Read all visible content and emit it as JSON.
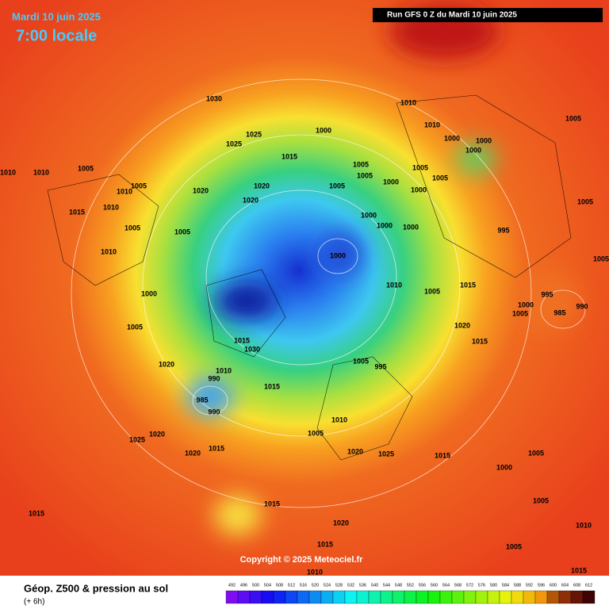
{
  "header": {
    "date": "Mardi 10 juin 2025",
    "time": "7:00 locale",
    "run": "Run GFS 0 Z du Mardi 10 juin 2025"
  },
  "copyright": "Copyright © 2025 Meteociel.fr",
  "footer": {
    "title": "Géop. Z500 & pression au sol",
    "step": "(+ 6h)"
  },
  "isobars": [
    1030,
    1010,
    1010,
    1000,
    1000,
    1000,
    1000,
    1005,
    1025,
    1025,
    1015,
    1005,
    1005,
    1005,
    1005,
    1010,
    1010,
    1005,
    1005,
    1010,
    1020,
    1020,
    1005,
    1000,
    1000,
    1020,
    1015,
    1010,
    1005,
    1000,
    1000,
    1000,
    995,
    1005,
    1005,
    1010,
    1000,
    1005,
    1010,
    1005,
    1015,
    995,
    1000,
    1000,
    1005,
    985,
    990,
    1005,
    1020,
    1015,
    1030,
    1015,
    1020,
    1005,
    995,
    1010,
    990,
    1015,
    985,
    990,
    1010,
    1005,
    1020,
    1025,
    1020,
    1015,
    1020,
    1025,
    1015,
    1005,
    1000,
    1015,
    1015,
    1005,
    1020,
    1010,
    1005,
    1015,
    1010,
    1015
  ],
  "scale": [
    492,
    496,
    500,
    504,
    508,
    512,
    516,
    520,
    524,
    528,
    532,
    536,
    540,
    544,
    548,
    552,
    556,
    560,
    564,
    568,
    572,
    576,
    580,
    584,
    588,
    592,
    596,
    600,
    604,
    608,
    612
  ]
}
